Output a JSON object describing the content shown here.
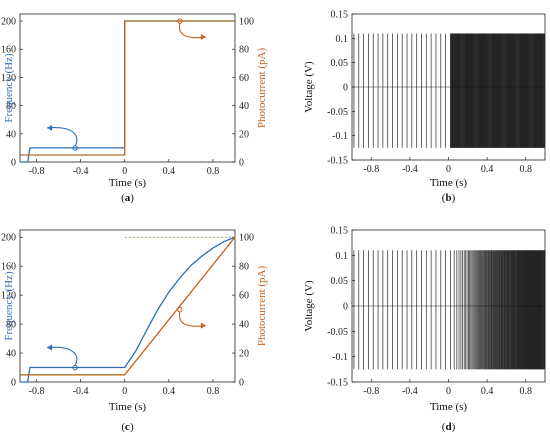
{
  "colors": {
    "frequency": "#2e6fb5",
    "photocurrent": "#c8601a",
    "voltage": "#111111"
  },
  "chart_data": [
    {
      "panel": "a",
      "type": "line",
      "caption_prefix": "(",
      "caption_letter": "a",
      "caption_suffix": ")",
      "xlabel": "Time (s)",
      "ylabel_left": "Frequency (Hz)",
      "ylabel_right": "Photocurrent (pA)",
      "xlim": [
        -0.95,
        1.0
      ],
      "ylim_left": [
        0,
        210
      ],
      "ylim_right": [
        0,
        105
      ],
      "xticks": [
        "-0.8",
        "-0.4",
        "0",
        "0.4",
        "0.8"
      ],
      "xtick_values": [
        -0.8,
        -0.4,
        0,
        0.4,
        0.8
      ],
      "yticks_left": [
        "0",
        "40",
        "80",
        "120",
        "160",
        "200"
      ],
      "ytick_values_left": [
        0,
        40,
        80,
        120,
        160,
        200
      ],
      "yticks_right": [
        "0",
        "20",
        "40",
        "60",
        "80",
        "100"
      ],
      "ytick_values_right": [
        0,
        20,
        40,
        60,
        80,
        100
      ],
      "series": [
        {
          "axis": "left",
          "color": "frequency",
          "x": [
            -0.95,
            -0.88,
            -0.86,
            0.0,
            0.0,
            1.0
          ],
          "y": [
            0,
            0,
            20,
            20,
            200,
            200
          ]
        },
        {
          "axis": "right",
          "color": "photocurrent",
          "x": [
            -0.95,
            0.0,
            0.0,
            1.0
          ],
          "y": [
            5,
            5,
            100,
            100
          ]
        }
      ]
    },
    {
      "panel": "b",
      "type": "line",
      "caption_prefix": "(",
      "caption_letter": "b",
      "caption_suffix": ")",
      "xlabel": "Time (s)",
      "ylabel_left": "Voltage (V)",
      "xlim": [
        -1.0,
        1.0
      ],
      "ylim_left": [
        -0.15,
        0.15
      ],
      "xticks": [
        "-0.8",
        "-0.4",
        "0",
        "0.4",
        "0.8"
      ],
      "xtick_values": [
        -0.8,
        -0.4,
        0,
        0.4,
        0.8
      ],
      "yticks_left": [
        "-0.15",
        "-0.1",
        "-0.05",
        "0",
        "0.05",
        "0.1",
        "0.15"
      ],
      "ytick_values_left": [
        -0.15,
        -0.1,
        -0.05,
        0,
        0.05,
        0.1,
        0.15
      ],
      "spikes": {
        "peak": 0.11,
        "trough": -0.125,
        "rate_before": 20,
        "rate_after": 200,
        "step_time": 0.0
      }
    },
    {
      "panel": "c",
      "type": "line",
      "caption_prefix": "(",
      "caption_letter": "c",
      "caption_suffix": ")",
      "xlabel": "Time (s)",
      "ylabel_left": "Frequency (Hz)",
      "ylabel_right": "Photocurrent (pA)",
      "xlim": [
        -0.95,
        1.0
      ],
      "ylim_left": [
        0,
        210
      ],
      "ylim_right": [
        0,
        105
      ],
      "xticks": [
        "-0.8",
        "-0.4",
        "0",
        "0.4",
        "0.8"
      ],
      "xtick_values": [
        -0.8,
        -0.4,
        0,
        0.4,
        0.8
      ],
      "yticks_left": [
        "0",
        "40",
        "80",
        "120",
        "160",
        "200"
      ],
      "ytick_values_left": [
        0,
        40,
        80,
        120,
        160,
        200
      ],
      "yticks_right": [
        "0",
        "20",
        "40",
        "60",
        "80",
        "100"
      ],
      "ytick_values_right": [
        0,
        20,
        40,
        60,
        80,
        100
      ],
      "series": [
        {
          "axis": "left",
          "color": "frequency",
          "x": [
            -0.95,
            -0.88,
            -0.86,
            0.0,
            0.1,
            0.2,
            0.3,
            0.4,
            0.5,
            0.6,
            0.7,
            0.8,
            0.9,
            1.0
          ],
          "y": [
            0,
            0,
            20,
            20,
            43,
            72,
            100,
            124,
            144,
            161,
            174,
            185,
            194,
            200
          ]
        },
        {
          "axis": "right",
          "color": "photocurrent",
          "x": [
            -0.95,
            0.0,
            1.0
          ],
          "y": [
            5,
            5,
            100
          ]
        }
      ]
    },
    {
      "panel": "d",
      "type": "line",
      "caption_prefix": "(",
      "caption_letter": "d",
      "caption_suffix": ")",
      "xlabel": "Time (s)",
      "ylabel_left": "Voltage (V)",
      "xlim": [
        -1.0,
        1.0
      ],
      "ylim_left": [
        -0.15,
        0.15
      ],
      "xticks": [
        "-0.8",
        "-0.4",
        "0",
        "0.4",
        "0.8"
      ],
      "xtick_values": [
        -0.8,
        -0.4,
        0,
        0.4,
        0.8
      ],
      "yticks_left": [
        "-0.15",
        "-0.1",
        "-0.05",
        "0",
        "0.05",
        "0.1",
        "0.15"
      ],
      "ytick_values_left": [
        -0.15,
        -0.1,
        -0.05,
        0,
        0.05,
        0.1,
        0.15
      ],
      "spikes": {
        "peak": 0.11,
        "trough": -0.125,
        "rate_before": 20,
        "rate_after": 200,
        "ramp_start": 0.0,
        "ramp_end": 1.0
      }
    }
  ]
}
